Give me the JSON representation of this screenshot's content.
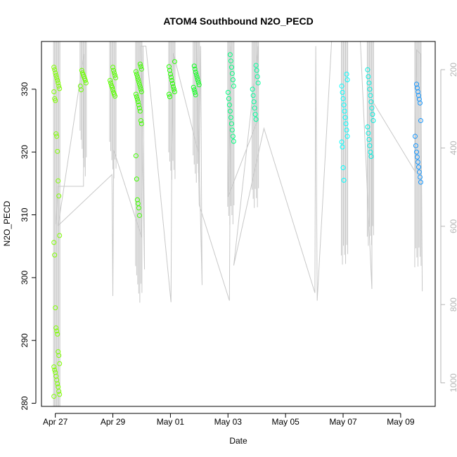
{
  "chart_data": {
    "type": "scatter",
    "title": "ATOM4 Southbound N2O_PECD",
    "xlabel": "Date",
    "ylabel": "N2O_PECD",
    "x_axis": {
      "ticks": [
        {
          "label": "Apr 27",
          "day": 0
        },
        {
          "label": "Apr 29",
          "day": 2
        },
        {
          "label": "May 01",
          "day": 4
        },
        {
          "label": "May 03",
          "day": 6
        },
        {
          "label": "May 05",
          "day": 8
        },
        {
          "label": "May 07",
          "day": 10
        },
        {
          "label": "May 09",
          "day": 12
        }
      ],
      "range_days": [
        -0.48,
        13.2
      ]
    },
    "y_axis": {
      "ticks": [
        280,
        290,
        300,
        310,
        320,
        330
      ],
      "range": [
        279.5,
        337.6
      ]
    },
    "y2_axis": {
      "ticks": [
        200,
        400,
        600,
        800,
        1000
      ],
      "range": [
        1060,
        128
      ],
      "color": "#b5b5b5"
    },
    "grid": false,
    "legend": "none",
    "series": [
      {
        "day": 0.05,
        "color": "#7fff00",
        "values": [
          333.5,
          333.1,
          332.6,
          332.2,
          331.8,
          331.4,
          331.0,
          330.5,
          330.1,
          329.6,
          328.5,
          328.2,
          322.9,
          322.5,
          320.1,
          315.4,
          313.0,
          306.7,
          305.6,
          303.6,
          295.2,
          292.0,
          291.5,
          291.0,
          288.2,
          287.6,
          286.3,
          285.8,
          285.3,
          284.9,
          284.3,
          283.7,
          283.1,
          282.6,
          281.9,
          281.4,
          281.1
        ]
      },
      {
        "day": 0.97,
        "color": "#6cff00",
        "values": [
          333.0,
          332.6,
          332.3,
          332.0,
          331.7,
          331.4,
          331.0,
          330.5,
          329.9
        ]
      },
      {
        "day": 2.0,
        "color": "#5aff00",
        "values": [
          333.5,
          333.0,
          332.6,
          332.2,
          331.8,
          331.4,
          331.0,
          330.6,
          330.3,
          329.9,
          329.5,
          329.2,
          328.9
        ]
      },
      {
        "day": 2.9,
        "color": "#40ff00",
        "values": [
          334.0,
          333.6,
          333.2,
          332.8,
          332.4,
          332.0,
          331.6,
          331.2,
          330.8,
          330.4,
          330.0,
          329.6,
          329.2,
          328.8,
          328.4,
          328.0,
          327.5,
          327.0,
          326.5,
          325.0,
          324.5,
          319.4,
          315.7,
          312.4,
          311.8,
          311.1,
          309.9
        ]
      },
      {
        "day": 4.05,
        "color": "#26ff00",
        "values": [
          334.4,
          333.6,
          333.0,
          332.4,
          331.9,
          331.4,
          330.9,
          330.4,
          330.0,
          329.6,
          329.2,
          328.8
        ]
      },
      {
        "day": 4.9,
        "color": "#10ff20",
        "values": [
          333.7,
          333.2,
          332.7,
          332.3,
          331.9,
          331.5,
          331.1,
          330.7,
          330.3,
          329.9,
          329.5,
          329.1
        ]
      },
      {
        "day": 6.1,
        "color": "#00ff80",
        "values": [
          335.5,
          334.5,
          333.5,
          332.5,
          331.5,
          330.5,
          329.5,
          328.5,
          327.5,
          326.5,
          325.5,
          324.5,
          323.5,
          322.5,
          321.7
        ]
      },
      {
        "day": 6.95,
        "color": "#00ff9c",
        "values": [
          333.8,
          333.0,
          332.0,
          331.0,
          330.0,
          329.0,
          328.0,
          327.0,
          326.0,
          325.2
        ]
      },
      {
        "day": 10.05,
        "color": "#00ffff",
        "values": [
          332.4,
          331.5,
          330.5,
          329.5,
          328.5,
          327.5,
          326.5,
          325.5,
          324.5,
          323.5,
          322.5,
          321.6,
          320.8,
          317.5,
          315.5
        ]
      },
      {
        "day": 10.95,
        "color": "#00f0e0",
        "values": [
          333.1,
          332.0,
          331.0,
          330.0,
          329.0,
          328.0,
          327.0,
          326.0,
          325.0,
          324.0,
          323.0,
          322.0,
          321.0,
          320.0,
          319.3
        ]
      },
      {
        "day": 12.6,
        "color": "#1898ff",
        "values": [
          330.8,
          330.2,
          329.6,
          329.0,
          328.4,
          327.8,
          325.0,
          322.5,
          321.0,
          320.0,
          319.2,
          318.4,
          317.6,
          316.8,
          316.0,
          315.2
        ]
      }
    ],
    "pressure_trace": {
      "color": "#c8c8c8",
      "points": [
        [
          0.02,
          595
        ],
        [
          0.09,
          498
        ],
        [
          0.98,
          498
        ],
        [
          1.0,
          160
        ],
        [
          0.1,
          598
        ],
        [
          1.97,
          468
        ],
        [
          2.0,
          778
        ],
        [
          2.03,
          405
        ],
        [
          3.0,
          628
        ],
        [
          3.05,
          140
        ],
        [
          3.1,
          710
        ],
        [
          2.97,
          140
        ],
        [
          3.15,
          140
        ],
        [
          4.02,
          794
        ],
        [
          4.05,
          400
        ],
        [
          4.1,
          158
        ],
        [
          5.0,
          420
        ],
        [
          5.05,
          140
        ],
        [
          5.1,
          750
        ],
        [
          4.9,
          125
        ],
        [
          5.0,
          545
        ],
        [
          6.05,
          790
        ],
        [
          6.1,
          140
        ],
        [
          6.0,
          525
        ],
        [
          7.0,
          335
        ],
        [
          7.05,
          140
        ],
        [
          6.2,
          700
        ],
        [
          7.25,
          350
        ],
        [
          9.02,
          770
        ],
        [
          9.05,
          140
        ],
        [
          9.1,
          790
        ],
        [
          9.6,
          123
        ],
        [
          10.6,
          125
        ],
        [
          11.0,
          760
        ],
        [
          11.0,
          278
        ],
        [
          12.5,
          460
        ],
        [
          12.55,
          150
        ],
        [
          12.7,
          160
        ],
        [
          12.75,
          766
        ]
      ]
    }
  }
}
